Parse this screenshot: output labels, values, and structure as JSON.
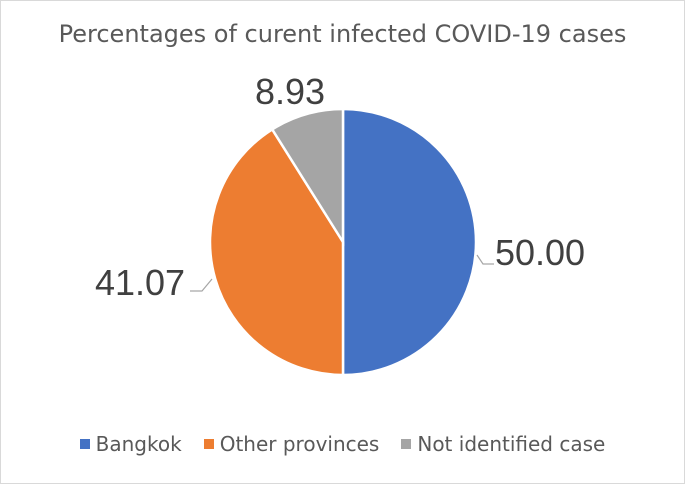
{
  "chart_data": {
    "type": "pie",
    "title": "Percentages of curent infected COVID-19 cases",
    "categories": [
      "Bangkok",
      "Other provinces",
      "Not identified case"
    ],
    "values": [
      50.0,
      41.07,
      8.93
    ],
    "labels": [
      "50.00",
      "41.07",
      "8.93"
    ],
    "colors": [
      "#4472c4",
      "#ed7d31",
      "#a5a5a5"
    ],
    "legend_position": "bottom"
  }
}
